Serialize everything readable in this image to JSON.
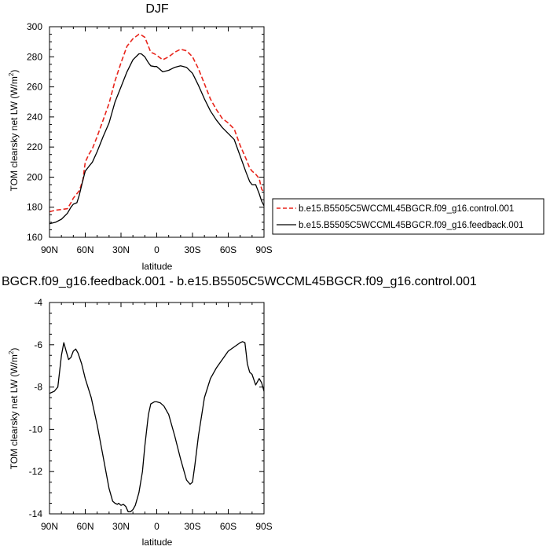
{
  "chart_data": [
    {
      "type": "line",
      "title": "DJF",
      "xlabel": "latitude",
      "ylabel": "TOM clearsky net LW (W/m",
      "ylabel_sup": "2",
      "ylabel_end": ")",
      "xlim": [
        90,
        -90
      ],
      "ylim": [
        160,
        300
      ],
      "xticks": [
        90,
        60,
        30,
        0,
        -30,
        -60,
        -90
      ],
      "xtick_labels": [
        "90N",
        "60N",
        "30N",
        "0",
        "30S",
        "60S",
        "90S"
      ],
      "yticks": [
        160,
        180,
        200,
        220,
        240,
        260,
        280,
        300
      ],
      "ytick_labels": [
        "160",
        "180",
        "200",
        "220",
        "240",
        "260",
        "280",
        "300"
      ],
      "legend_position": "right",
      "series": [
        {
          "name": "b.e15.B5505C5WCCML45BGCR.f09_g16.control.001",
          "color": "#e8251c",
          "dash": "dashed",
          "x": [
            90,
            85,
            80,
            75,
            72,
            70,
            67,
            65,
            62,
            60,
            57,
            54,
            50,
            45,
            40,
            35,
            30,
            25,
            20,
            15,
            13,
            10,
            7,
            5,
            2,
            0,
            -5,
            -10,
            -15,
            -20,
            -25,
            -30,
            -35,
            -40,
            -45,
            -50,
            -55,
            -60,
            -65,
            -70,
            -75,
            -78,
            -80,
            -83,
            -86,
            -88,
            -90
          ],
          "y": [
            177,
            178,
            178.5,
            179,
            183,
            186,
            189,
            191,
            198,
            210,
            215,
            219,
            227,
            238,
            249,
            264,
            276,
            287,
            292,
            295,
            294.5,
            293,
            287,
            283,
            282,
            281,
            278,
            280,
            283,
            285,
            284,
            280,
            272,
            262,
            252,
            245,
            239,
            236,
            232,
            221,
            212,
            206,
            204,
            202,
            199,
            192,
            190
          ]
        },
        {
          "name": "b.e15.B5505C5WCCML45BGCR.f09_g16.feedback.001",
          "color": "#000000",
          "dash": "solid",
          "x": [
            90,
            85,
            80,
            75,
            72,
            70,
            67,
            65,
            62,
            60,
            57,
            54,
            50,
            45,
            40,
            35,
            30,
            25,
            20,
            15,
            13,
            10,
            7,
            5,
            2,
            0,
            -5,
            -10,
            -15,
            -20,
            -25,
            -30,
            -35,
            -40,
            -45,
            -50,
            -55,
            -60,
            -65,
            -70,
            -75,
            -78,
            -80,
            -83,
            -86,
            -88,
            -90
          ],
          "y": [
            169,
            170,
            172,
            176,
            180,
            182,
            183,
            188,
            198,
            204,
            207,
            210,
            217,
            227,
            236,
            250,
            260,
            270,
            278,
            282,
            282,
            280,
            276,
            274,
            273.5,
            273.5,
            270,
            271,
            273,
            274,
            273,
            269,
            261,
            252,
            244,
            238,
            233,
            229,
            225,
            214,
            203,
            197,
            195,
            195,
            189,
            184,
            181
          ]
        }
      ]
    },
    {
      "type": "line",
      "title": "BGCR.f09_g16.feedback.001 - b.e15.B5505C5WCCML45BGCR.f09_g16.control.001",
      "xlabel": "latitude",
      "ylabel": "TOM clearsky net LW (W/m",
      "ylabel_sup": "2",
      "ylabel_end": ")",
      "xlim": [
        90,
        -90
      ],
      "ylim": [
        -14,
        -4
      ],
      "xticks": [
        90,
        60,
        30,
        0,
        -30,
        -60,
        -90
      ],
      "xtick_labels": [
        "90N",
        "60N",
        "30N",
        "0",
        "30S",
        "60S",
        "90S"
      ],
      "yticks": [
        -14,
        -12,
        -10,
        -8,
        -6,
        -4
      ],
      "ytick_labels": [
        "-14",
        "-12",
        "-10",
        "-8",
        "-6",
        "-4"
      ],
      "series": [
        {
          "color": "#000000",
          "dash": "solid",
          "x": [
            90,
            86,
            83,
            80,
            78,
            76,
            74,
            72,
            70,
            68,
            66,
            63,
            60,
            55,
            50,
            45,
            40,
            37,
            35,
            33,
            32,
            30,
            28,
            26,
            24,
            22,
            20,
            18,
            15,
            12,
            10,
            7,
            5,
            2,
            0,
            -3,
            -6,
            -10,
            -15,
            -20,
            -25,
            -28,
            -30,
            -32,
            -35,
            -40,
            -45,
            -50,
            -55,
            -60,
            -65,
            -70,
            -72,
            -74,
            -75,
            -76,
            -78,
            -80,
            -83,
            -86,
            -88,
            -90
          ],
          "y": [
            -8.3,
            -8.2,
            -8.0,
            -6.5,
            -5.9,
            -6.3,
            -6.7,
            -6.6,
            -6.3,
            -6.2,
            -6.4,
            -6.9,
            -7.6,
            -8.5,
            -9.8,
            -11.3,
            -12.8,
            -13.4,
            -13.5,
            -13.55,
            -13.5,
            -13.6,
            -13.55,
            -13.65,
            -13.9,
            -13.9,
            -13.8,
            -13.6,
            -13.0,
            -12.0,
            -10.8,
            -9.3,
            -8.8,
            -8.7,
            -8.7,
            -8.75,
            -8.9,
            -9.3,
            -10.3,
            -11.4,
            -12.4,
            -12.6,
            -12.5,
            -11.7,
            -10.3,
            -8.5,
            -7.6,
            -7.1,
            -6.7,
            -6.3,
            -6.1,
            -5.9,
            -5.85,
            -5.9,
            -6.4,
            -6.9,
            -7.3,
            -7.4,
            -7.9,
            -7.6,
            -7.8,
            -8.2
          ]
        }
      ]
    }
  ]
}
